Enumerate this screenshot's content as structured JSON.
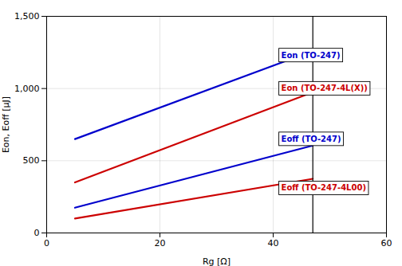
{
  "chart_data": {
    "type": "line",
    "xlabel": "Rg [Ω]",
    "ylabel": "Eon, Eoff [μJ]",
    "xlim": [
      0,
      60
    ],
    "ylim": [
      0,
      1500
    ],
    "xticks": [
      0,
      20,
      40,
      60
    ],
    "yticks": [
      0,
      500,
      1000,
      1500
    ],
    "grid": true,
    "vlines": [
      47
    ],
    "series": [
      {
        "name": "Eon (TO-247)",
        "color": "#0000CC",
        "x": [
          5,
          47
        ],
        "values": [
          650,
          1260
        ],
        "label_x": 41,
        "label_y": 1230
      },
      {
        "name": "Eon (TO-247-4L(X))",
        "color": "#CC0000",
        "x": [
          5,
          47
        ],
        "values": [
          350,
          975
        ],
        "label_x": 41,
        "label_y": 1000
      },
      {
        "name": "Eoff (TO-247)",
        "color": "#0000CC",
        "x": [
          5,
          47
        ],
        "values": [
          175,
          605
        ],
        "label_x": 41,
        "label_y": 650
      },
      {
        "name": "Eoff (TO-247-4L00)",
        "color": "#CC0000",
        "x": [
          5,
          47
        ],
        "values": [
          100,
          375
        ],
        "label_x": 41,
        "label_y": 310
      }
    ]
  }
}
